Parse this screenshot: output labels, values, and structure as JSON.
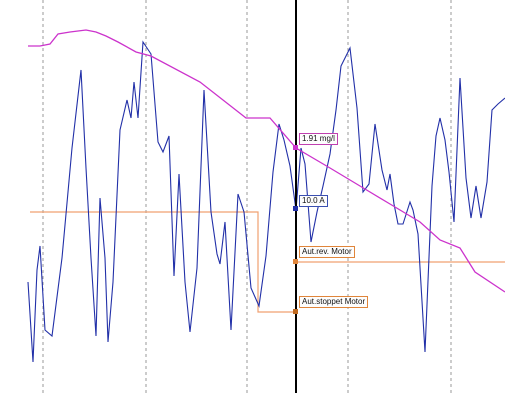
{
  "chart_data": {
    "type": "line",
    "annotations": {
      "concentration": "1.91 mg/l",
      "current": "10.0 A",
      "motor_rev": "Aut.rev. Motor",
      "motor_stop": "Aut.stoppet Motor"
    },
    "colors": {
      "concentration": "#cc33cc",
      "current": "#2230a8",
      "motor": "#f0a070",
      "cursor": "#000000",
      "grid": "#9a9a9a"
    },
    "grid": "vertical dashed",
    "cursor": "vertical marker"
  }
}
